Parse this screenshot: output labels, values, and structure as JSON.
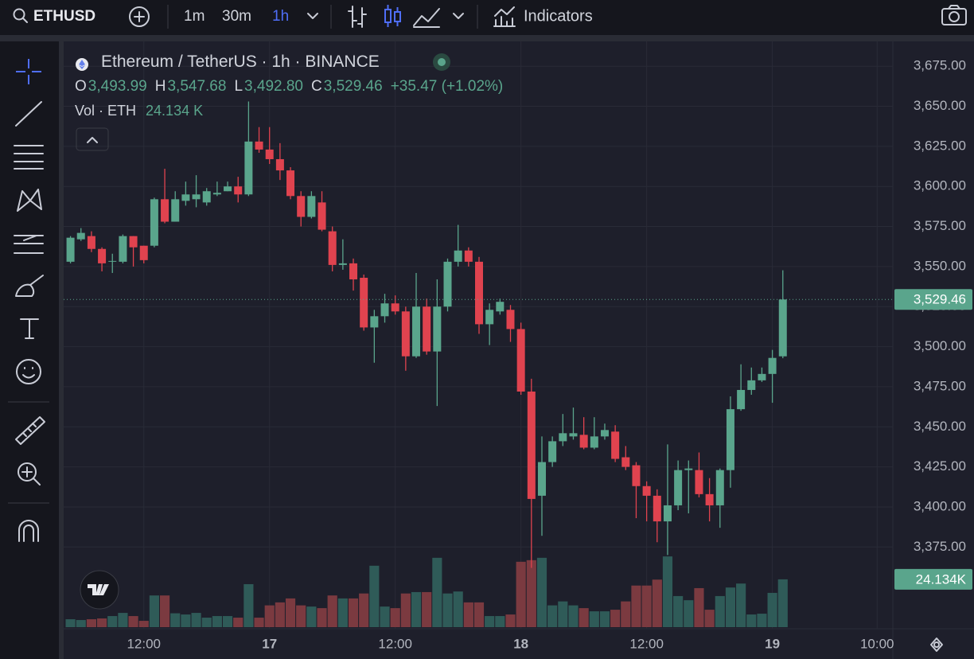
{
  "toolbar": {
    "symbol": "ETHUSD",
    "intervals": [
      "1m",
      "30m",
      "1h"
    ],
    "indicators": "Indicators"
  },
  "legend": {
    "title": "Ethereum / TetherUS · 1h · BINANCE",
    "o_label": "O",
    "open": "3,493.99",
    "h_label": "H",
    "high": "3,547.68",
    "l_label": "L",
    "low": "3,492.80",
    "c_label": "C",
    "close": "3,529.46",
    "change": "+35.47 (+1.02%)",
    "volume_label": "Vol · ETH",
    "volume": "24.134 K"
  },
  "chart_data": {
    "type": "candlestick",
    "categories": [
      null,
      null,
      null,
      null,
      null,
      null,
      null,
      "12:00",
      null,
      null,
      null,
      null,
      null,
      null,
      null,
      null,
      null,
      null,
      null,
      "17",
      null,
      null,
      null,
      null,
      null,
      null,
      null,
      null,
      null,
      null,
      null,
      "12:00",
      null,
      null,
      null,
      null,
      null,
      null,
      null,
      null,
      null,
      null,
      null,
      "18",
      null,
      null,
      null,
      null,
      null,
      null,
      null,
      null,
      null,
      null,
      null,
      "12:00",
      null,
      null,
      null,
      null,
      null,
      null,
      null,
      null,
      null,
      null,
      null,
      "19",
      null,
      null,
      null,
      null,
      null,
      null,
      null,
      null,
      null,
      "10:00",
      null
    ],
    "open": [
      3553,
      3567,
      3569,
      3561,
      3553,
      3553,
      3569,
      3563,
      3563,
      3592,
      3578,
      3591,
      3592,
      3590,
      3595,
      3597,
      3600,
      3595,
      3628,
      3623,
      3617,
      3610,
      3594,
      3581,
      3590,
      3572,
      3551,
      3552,
      3543,
      3512,
      3519,
      3527,
      3522,
      3494,
      3525,
      3497,
      3525,
      3553,
      3560,
      3553,
      3514,
      3522,
      3523,
      3511,
      3472,
      3407,
      3428,
      3441,
      3444,
      3445,
      3437,
      3444,
      3447,
      3431,
      3426,
      3413,
      3407,
      3391,
      3401,
      3423,
      3423,
      3408,
      3401,
      3423,
      3461,
      3473,
      3479,
      3483,
      3493.99,
      null,
      null,
      null,
      null,
      null,
      null,
      null,
      null,
      null,
      null
    ],
    "high": [
      3569,
      3574,
      3572,
      3562,
      3558,
      3570,
      3569,
      3563,
      3593,
      3611,
      3597,
      3603,
      3607,
      3599,
      3603,
      3603,
      3606,
      3653,
      3637,
      3637,
      3627,
      3612,
      3597,
      3597,
      3597,
      3575,
      3567,
      3555,
      3545,
      3523,
      3533,
      3532,
      3525,
      3546,
      3530,
      3542,
      3555,
      3576,
      3562,
      3556,
      3527,
      3530,
      3526,
      3515,
      3480,
      3444,
      3444,
      3458,
      3462,
      3456,
      3456,
      3452,
      3451,
      3438,
      3428,
      3416,
      3411,
      3439,
      3429,
      3429,
      3434,
      3418,
      3424,
      3469,
      3489,
      3487,
      3487,
      3498,
      3547.68,
      null,
      null,
      null,
      null,
      null,
      null,
      null,
      null,
      null,
      null
    ],
    "low": [
      3552,
      3566,
      3559,
      3547,
      3546,
      3552,
      3550,
      3552,
      3562,
      3577,
      3578,
      3588,
      3587,
      3588,
      3594,
      3597,
      3590,
      3594,
      3621,
      3614,
      3604,
      3592,
      3575,
      3580,
      3572,
      3547,
      3548,
      3535,
      3510,
      3490,
      3515,
      3520,
      3485,
      3493,
      3495,
      3463,
      3522,
      3550,
      3550,
      3508,
      3501,
      3520,
      3503,
      3470,
      3362,
      3382,
      3425,
      3438,
      3442,
      3436,
      3436,
      3442,
      3428,
      3423,
      3393,
      3391,
      3378,
      3370,
      3398,
      3396,
      3406,
      3391,
      3387,
      3412,
      3460,
      3470,
      3478,
      3465,
      3492.8,
      null,
      null,
      null,
      null,
      null,
      null,
      null,
      null,
      null,
      null
    ],
    "close": [
      3568,
      3571,
      3561,
      3552,
      3553.5,
      3569,
      3562,
      3554,
      3592,
      3578,
      3592,
      3595,
      3595,
      3597,
      3596,
      3600,
      3595,
      3628,
      3623,
      3617,
      3610,
      3594,
      3581,
      3594,
      3573,
      3551,
      3552,
      3542,
      3512,
      3519,
      3527,
      3522,
      3494,
      3525,
      3497,
      3525,
      3553,
      3560,
      3553,
      3514,
      3523,
      3528,
      3511,
      3472,
      3405,
      3428,
      3441,
      3446,
      3446,
      3437,
      3444,
      3448,
      3430,
      3425,
      3413,
      3407,
      3391,
      3401,
      3423,
      3424,
      3408,
      3401,
      3423,
      3461,
      3473,
      3479,
      3483,
      3493,
      3529.46,
      null,
      null,
      null,
      null,
      null,
      null,
      null,
      null,
      null,
      null
    ],
    "volume": [
      4,
      3.6,
      4,
      4.4,
      5.6,
      7.2,
      5.6,
      3.2,
      16,
      16,
      7,
      6.4,
      7.2,
      4.8,
      5.6,
      5.6,
      4.8,
      21.7,
      4.8,
      11,
      12.5,
      14.5,
      11,
      10.4,
      9.6,
      16,
      14.5,
      14.5,
      17,
      31,
      10.4,
      9.6,
      17,
      17.7,
      17.7,
      35,
      17,
      18,
      12.5,
      12.5,
      5.6,
      5.6,
      6.4,
      33,
      33.8,
      35,
      11,
      13,
      11,
      9.6,
      8,
      8,
      8.8,
      13,
      21,
      21,
      24,
      35.7,
      15.7,
      13.6,
      19.7,
      8.8,
      15.7,
      20,
      22,
      6.4,
      6.8,
      17.3,
      24.134,
      null,
      null,
      null,
      null,
      null,
      null,
      null,
      null,
      null,
      null
    ],
    "volume_ylim": [
      0,
      100
    ],
    "ylim": [
      3324,
      3689
    ],
    "yticks": [
      {
        "value": 3375,
        "label": "3,375.00"
      },
      {
        "value": 3400,
        "label": "3,400.00"
      },
      {
        "value": 3425,
        "label": "3,425.00"
      },
      {
        "value": 3450,
        "label": "3,450.00"
      },
      {
        "value": 3475,
        "label": "3,475.00"
      },
      {
        "value": 3500,
        "label": "3,500.00"
      },
      {
        "value": 3525,
        "label": "3,525.00"
      },
      {
        "value": 3550,
        "label": "3,550.00"
      },
      {
        "value": 3575,
        "label": "3,575.00"
      },
      {
        "value": 3600,
        "label": "3,600.00"
      },
      {
        "value": 3625,
        "label": "3,625.00"
      },
      {
        "value": 3650,
        "label": "3,650.00"
      },
      {
        "value": 3675,
        "label": "3,675.00"
      }
    ],
    "grid": true,
    "up_color": "#5aa58c",
    "down_color": "#e0434f",
    "volume_up_color": "#2f5b58",
    "volume_down_color": "#7b3a40",
    "last_volume_label": "24.134K"
  }
}
